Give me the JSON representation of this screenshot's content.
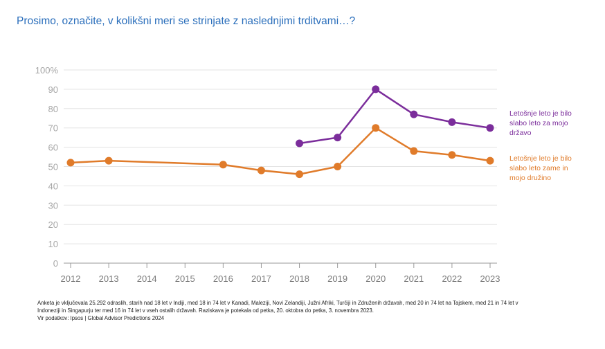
{
  "title": "Prosimo, označite, v kolikšni meri se strinjate z naslednjimi trditvami…?",
  "footnote": {
    "line1": "Anketa je vključevala 25.292 odraslih, starih nad 18 let v Indiji, med 18 in 74 let v Kanadi, Maleziji, Novi Zelandiji, Južni Afriki, Turčiji in Združenih državah, med 20 in 74 let na Tajskem, med 21 in 74 let v",
    "line2": "Indoneziji in Singapurju ter med 16 in 74 let v vseh ostalih državah. Raziskava je potekala od petka, 20. oktobra do petka, 3. novembra 2023.",
    "line3": "Vir podatkov: Ipsos | Global Advisor Predictions 2024"
  },
  "chart_data": {
    "type": "line",
    "title": "Prosimo, označite, v kolikšni meri se strinjate z naslednjimi trditvami…?",
    "xlabel": "",
    "ylabel": "",
    "x": [
      "2012",
      "2013",
      "2014",
      "2015",
      "2016",
      "2017",
      "2018",
      "2019",
      "2020",
      "2021",
      "2022",
      "2023"
    ],
    "ylim": [
      0,
      100
    ],
    "yticks": [
      0,
      10,
      20,
      30,
      40,
      50,
      60,
      70,
      80,
      90,
      100
    ],
    "ytick_labels": [
      "0",
      "10",
      "20",
      "30",
      "40",
      "50",
      "60",
      "70",
      "80",
      "90",
      "100%"
    ],
    "grid": true,
    "legend_position": "right",
    "series": [
      {
        "name": "Letošnje leto je bilo slabo leto za mojo državo",
        "color": "#7b2d9b",
        "values": [
          null,
          null,
          null,
          null,
          null,
          null,
          62,
          65,
          90,
          77,
          73,
          70
        ]
      },
      {
        "name": "Letošnje leto je bilo slabo leto zame in mojo družino",
        "color": "#e07b2a",
        "values": [
          52,
          53,
          null,
          null,
          51,
          48,
          46,
          50,
          70,
          58,
          56,
          53
        ]
      }
    ]
  }
}
